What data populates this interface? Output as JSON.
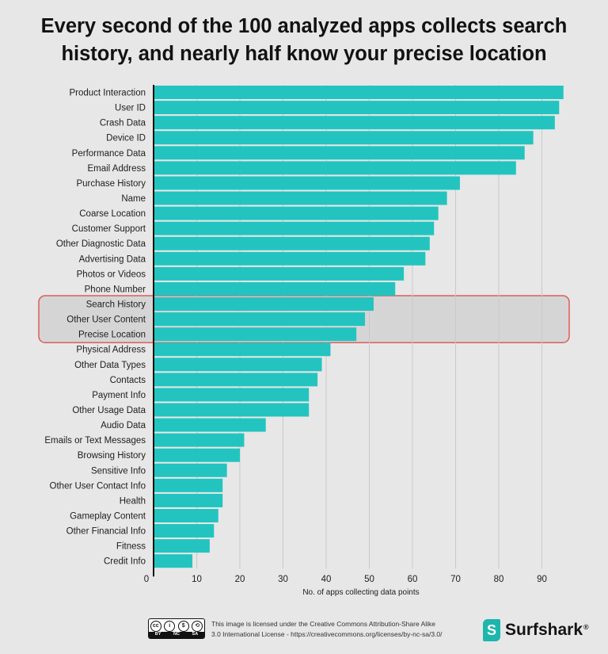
{
  "title_line1": "Every second of the 100 analyzed apps collects search",
  "title_line2": "history, and nearly half know your precise location",
  "chart_data": {
    "type": "bar",
    "orientation": "horizontal",
    "categories": [
      "Product Interaction",
      "User ID",
      "Crash Data",
      "Device ID",
      "Performance Data",
      "Email Address",
      "Purchase History",
      "Name",
      "Coarse Location",
      "Customer Support",
      "Other Diagnostic Data",
      "Advertising Data",
      "Photos or Videos",
      "Phone Number",
      "Search History",
      "Other User Content",
      "Precise Location",
      "Physical Address",
      "Other Data Types",
      "Contacts",
      "Payment Info",
      "Other Usage Data",
      "Audio Data",
      "Emails or Text Messages",
      "Browsing History",
      "Sensitive Info",
      "Other User Contact Info",
      "Health",
      "Gameplay Content",
      "Other Financial Info",
      "Fitness",
      "Credit Info"
    ],
    "values": [
      95,
      94,
      93,
      88,
      86,
      84,
      71,
      68,
      66,
      65,
      64,
      63,
      58,
      56,
      51,
      49,
      47,
      41,
      39,
      38,
      36,
      36,
      26,
      21,
      20,
      17,
      16,
      16,
      15,
      14,
      13,
      9
    ],
    "highlighted": [
      "Search History",
      "Other User Content",
      "Precise Location"
    ],
    "xlabel": "No. of apps collecting data points",
    "ylabel": "",
    "xlim": [
      0,
      97
    ],
    "xticks": [
      0,
      10,
      20,
      30,
      40,
      50,
      60,
      70,
      80,
      90
    ],
    "grid": true,
    "legend": "none",
    "colors": {
      "bar": "#23c4bf",
      "grid": "#c9c9c9",
      "axis": "#111111",
      "highlight_fill": "#d5d5d5",
      "highlight_border": "#df5d5d"
    }
  },
  "footer": {
    "license_line1": "This image is licensed under the Creative Commons Attribution-Share Alike",
    "license_line2": "3.0 International License - https://creativecommons.org/licenses/by-nc-sa/3.0/",
    "cc_badge_symbols": [
      "cc",
      "i",
      "$",
      "⟲"
    ],
    "cc_badge_labels": [
      "BY",
      "NC",
      "SA"
    ],
    "brand_name": "Surfshark",
    "brand_mark": "®",
    "brand_logo_letter": "S"
  }
}
